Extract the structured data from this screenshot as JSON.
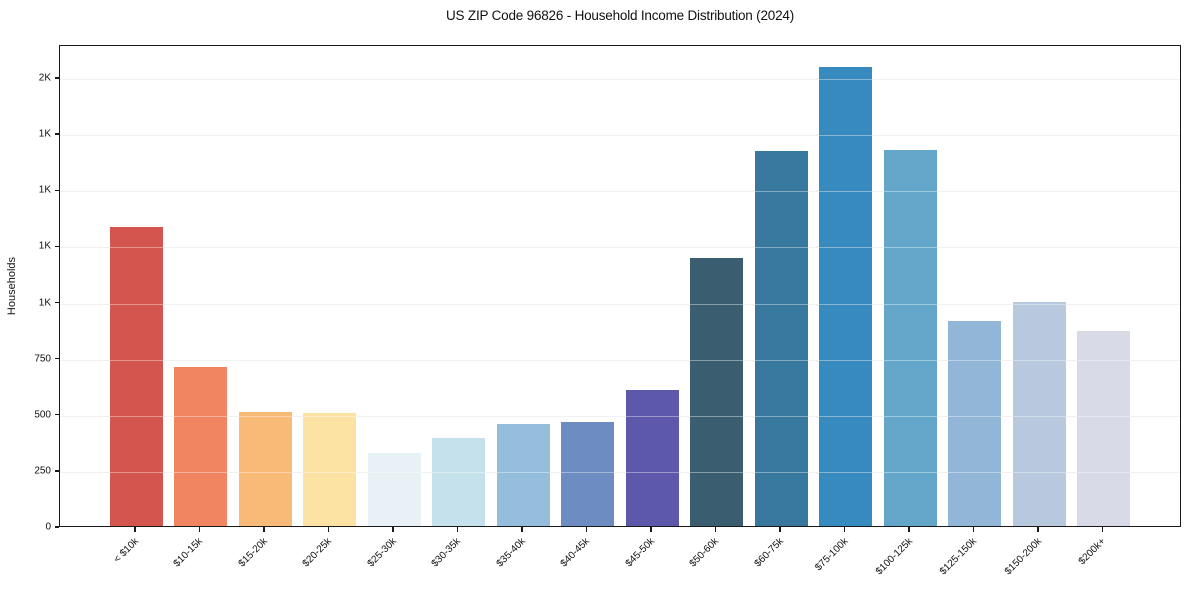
{
  "chart_data": {
    "type": "bar",
    "title": "US ZIP Code 96826 - Household Income Distribution (2024)",
    "xlabel": "",
    "ylabel": "Households",
    "categories": [
      "< $10k",
      "$10-15k",
      "$15-20k",
      "$20-25k",
      "$25-30k",
      "$30-35k",
      "$35-40k",
      "$40-45k",
      "$45-50k",
      "$50-60k",
      "$60-75k",
      "$75-100k",
      "$100-125k",
      "$125-150k",
      "$150-200k",
      "$200k+"
    ],
    "values": [
      1330,
      710,
      510,
      505,
      325,
      390,
      455,
      465,
      605,
      1195,
      1670,
      2045,
      1675,
      915,
      1000,
      870
    ],
    "bar_colors": [
      "#d4554d",
      "#f28561",
      "#f9ba77",
      "#fce3a4",
      "#e7f1f6",
      "#c5e1ec",
      "#94bedb",
      "#6d8cc1",
      "#5d58a9",
      "#3a5e70",
      "#38789f",
      "#378abe",
      "#63a6ca",
      "#91b6d7",
      "#b7c8df",
      "#d8dae8"
    ],
    "ylim": [
      0,
      2147
    ],
    "yticks": [
      {
        "value": 0,
        "label": "0"
      },
      {
        "value": 250,
        "label": "250"
      },
      {
        "value": 500,
        "label": "500"
      },
      {
        "value": 750,
        "label": "750"
      },
      {
        "value": 1000,
        "label": "1K"
      },
      {
        "value": 1250,
        "label": "1K"
      },
      {
        "value": 1500,
        "label": "1K"
      },
      {
        "value": 1750,
        "label": "1K"
      },
      {
        "value": 2000,
        "label": "2K"
      }
    ],
    "grid": true,
    "legend": false
  },
  "colors": {
    "background": "#ffffff",
    "spine": "#1a1a1a",
    "gridline": "#e9e9e9",
    "text": "#111111"
  }
}
